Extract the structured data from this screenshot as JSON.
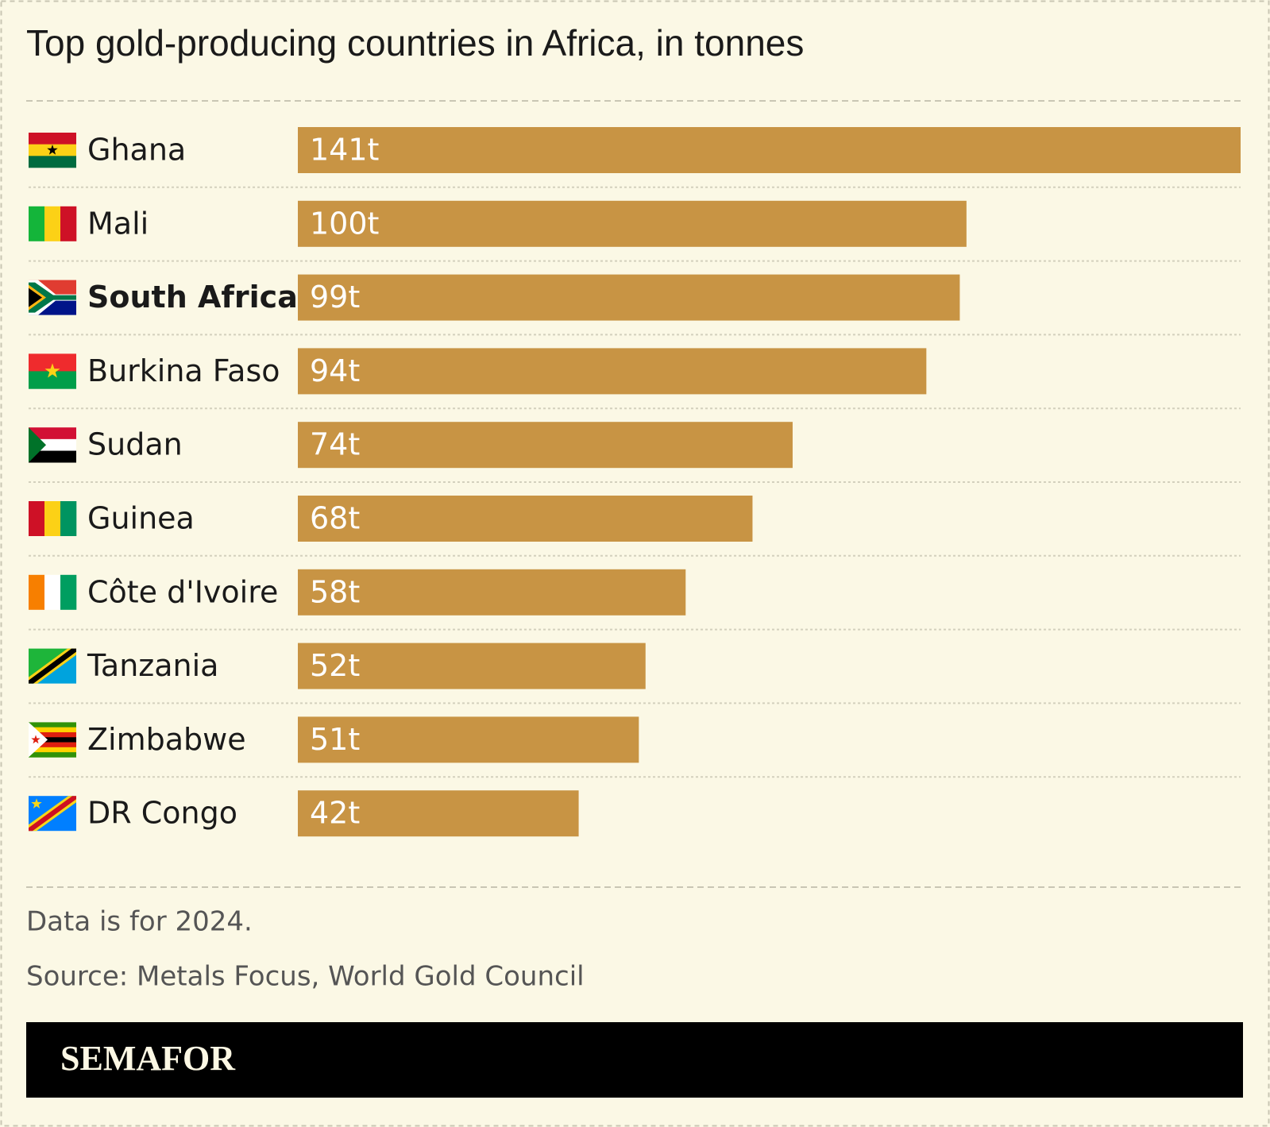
{
  "chart_data": {
    "type": "bar",
    "orientation": "horizontal",
    "title": "Top gold-producing countries in Africa, in tonnes",
    "categories": [
      "Ghana",
      "Mali",
      "South Africa",
      "Burkina Faso",
      "Sudan",
      "Guinea",
      "Côte d'Ivoire",
      "Tanzania",
      "Zimbabwe",
      "DR Congo"
    ],
    "values": [
      141,
      100,
      99,
      94,
      74,
      68,
      58,
      52,
      51,
      42
    ],
    "value_labels": [
      "141t",
      "100t",
      "99t",
      "94t",
      "74t",
      "68t",
      "58t",
      "52t",
      "51t",
      "42t"
    ],
    "color": "#c89444",
    "highlight_index": 2,
    "note": "Data is for 2024.",
    "source": "Source: Metals Focus, World Gold Council",
    "brand": "SEMAFOR"
  }
}
